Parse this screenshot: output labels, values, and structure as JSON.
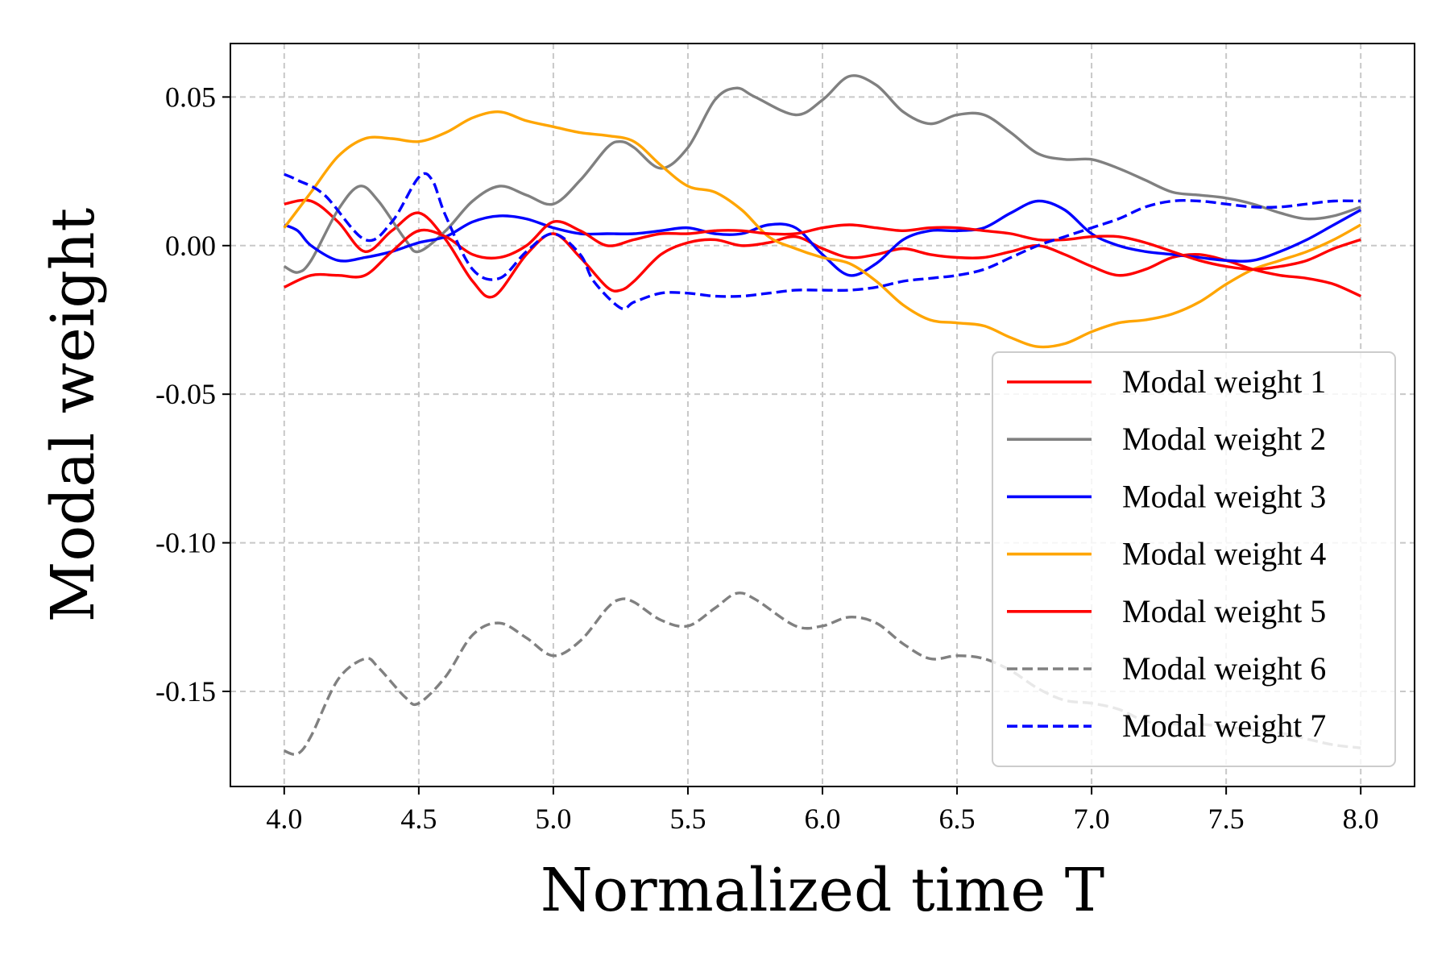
{
  "chart_data": {
    "type": "line",
    "title": "",
    "xlabel": "Normalized time T",
    "ylabel": "Modal weight",
    "xlim": [
      3.8,
      8.2
    ],
    "ylim": [
      -0.182,
      0.068
    ],
    "xticks": [
      4.0,
      4.5,
      5.0,
      5.5,
      6.0,
      6.5,
      7.0,
      7.5,
      8.0
    ],
    "xtick_labels": [
      "4.0",
      "4.5",
      "5.0",
      "5.5",
      "6.0",
      "6.5",
      "7.0",
      "7.5",
      "8.0"
    ],
    "yticks": [
      0.05,
      0.0,
      -0.05,
      -0.1,
      -0.15
    ],
    "ytick_labels": [
      "0.05",
      "0.00",
      "-0.05",
      "-0.10",
      "-0.15"
    ],
    "grid": true,
    "legend_position": "bottom-right",
    "series": [
      {
        "name": "Modal weight 1",
        "color": "#ff0000",
        "dash": "solid",
        "x": [
          4.0,
          4.1,
          4.2,
          4.3,
          4.4,
          4.5,
          4.6,
          4.7,
          4.78,
          4.9,
          5.0,
          5.1,
          5.2,
          5.25,
          5.3,
          5.4,
          5.5,
          5.6,
          5.7,
          5.8,
          5.9,
          6.0,
          6.1,
          6.2,
          6.3,
          6.4,
          6.5,
          6.6,
          6.7,
          6.8,
          6.9,
          7.0,
          7.1,
          7.2,
          7.3,
          7.4,
          7.5,
          7.6,
          7.7,
          7.8,
          7.9,
          8.0
        ],
        "y": [
          0.014,
          0.015,
          0.008,
          -0.002,
          0.005,
          0.011,
          0.002,
          -0.012,
          -0.017,
          -0.003,
          0.004,
          -0.004,
          -0.014,
          -0.015,
          -0.012,
          -0.003,
          0.001,
          0.002,
          0.0,
          0.001,
          0.003,
          -0.001,
          -0.004,
          -0.003,
          -0.001,
          -0.003,
          -0.004,
          -0.004,
          -0.002,
          0.0,
          -0.003,
          -0.007,
          -0.01,
          -0.008,
          -0.004,
          -0.003,
          -0.005,
          -0.008,
          -0.01,
          -0.011,
          -0.013,
          -0.017
        ]
      },
      {
        "name": "Modal weight 2",
        "color": "#808080",
        "dash": "solid",
        "x": [
          4.0,
          4.05,
          4.1,
          4.2,
          4.28,
          4.35,
          4.45,
          4.5,
          4.6,
          4.7,
          4.8,
          4.9,
          5.0,
          5.1,
          5.2,
          5.25,
          5.3,
          5.4,
          5.5,
          5.6,
          5.68,
          5.75,
          5.9,
          6.0,
          6.1,
          6.2,
          6.3,
          6.4,
          6.5,
          6.6,
          6.7,
          6.8,
          6.9,
          7.0,
          7.1,
          7.2,
          7.3,
          7.4,
          7.5,
          7.6,
          7.7,
          7.8,
          7.9,
          8.0
        ],
        "y": [
          -0.007,
          -0.009,
          -0.005,
          0.012,
          0.02,
          0.015,
          0.002,
          -0.002,
          0.005,
          0.015,
          0.02,
          0.017,
          0.014,
          0.022,
          0.033,
          0.035,
          0.033,
          0.026,
          0.033,
          0.049,
          0.053,
          0.05,
          0.044,
          0.049,
          0.057,
          0.054,
          0.045,
          0.041,
          0.044,
          0.044,
          0.038,
          0.031,
          0.029,
          0.029,
          0.026,
          0.022,
          0.018,
          0.017,
          0.016,
          0.014,
          0.011,
          0.009,
          0.01,
          0.013
        ]
      },
      {
        "name": "Modal weight 3",
        "color": "#0000ff",
        "dash": "solid",
        "x": [
          4.0,
          4.05,
          4.1,
          4.2,
          4.3,
          4.4,
          4.5,
          4.6,
          4.7,
          4.8,
          4.9,
          5.0,
          5.1,
          5.2,
          5.3,
          5.4,
          5.5,
          5.6,
          5.7,
          5.8,
          5.9,
          6.0,
          6.1,
          6.2,
          6.3,
          6.4,
          6.5,
          6.6,
          6.7,
          6.8,
          6.9,
          7.0,
          7.1,
          7.2,
          7.3,
          7.4,
          7.5,
          7.6,
          7.7,
          7.8,
          7.9,
          8.0
        ],
        "y": [
          0.007,
          0.005,
          0.0,
          -0.005,
          -0.004,
          -0.002,
          0.001,
          0.003,
          0.008,
          0.01,
          0.009,
          0.006,
          0.004,
          0.004,
          0.004,
          0.005,
          0.006,
          0.004,
          0.004,
          0.007,
          0.006,
          -0.003,
          -0.01,
          -0.006,
          0.002,
          0.005,
          0.005,
          0.006,
          0.011,
          0.015,
          0.012,
          0.004,
          0.0,
          -0.002,
          -0.003,
          -0.004,
          -0.005,
          -0.005,
          -0.002,
          0.002,
          0.007,
          0.012
        ]
      },
      {
        "name": "Modal weight 4",
        "color": "#ffa500",
        "dash": "solid",
        "x": [
          4.0,
          4.1,
          4.2,
          4.3,
          4.4,
          4.5,
          4.6,
          4.7,
          4.8,
          4.9,
          5.0,
          5.1,
          5.2,
          5.3,
          5.4,
          5.5,
          5.6,
          5.7,
          5.8,
          5.9,
          6.0,
          6.1,
          6.2,
          6.3,
          6.4,
          6.5,
          6.6,
          6.7,
          6.8,
          6.9,
          7.0,
          7.1,
          7.2,
          7.3,
          7.4,
          7.5,
          7.6,
          7.7,
          7.8,
          7.9,
          8.0
        ],
        "y": [
          0.006,
          0.018,
          0.03,
          0.036,
          0.036,
          0.035,
          0.038,
          0.043,
          0.045,
          0.042,
          0.04,
          0.038,
          0.037,
          0.035,
          0.027,
          0.02,
          0.018,
          0.012,
          0.003,
          -0.001,
          -0.004,
          -0.006,
          -0.012,
          -0.02,
          -0.025,
          -0.026,
          -0.027,
          -0.031,
          -0.034,
          -0.033,
          -0.029,
          -0.026,
          -0.025,
          -0.023,
          -0.019,
          -0.013,
          -0.008,
          -0.005,
          -0.002,
          0.002,
          0.007
        ]
      },
      {
        "name": "Modal weight 5",
        "color": "#ff0000",
        "dash": "solid",
        "x": [
          4.0,
          4.1,
          4.2,
          4.3,
          4.4,
          4.5,
          4.6,
          4.7,
          4.8,
          4.9,
          5.0,
          5.1,
          5.2,
          5.3,
          5.4,
          5.5,
          5.6,
          5.7,
          5.8,
          5.9,
          6.0,
          6.1,
          6.2,
          6.3,
          6.4,
          6.5,
          6.6,
          6.7,
          6.8,
          6.9,
          7.0,
          7.1,
          7.2,
          7.3,
          7.4,
          7.5,
          7.6,
          7.7,
          7.8,
          7.9,
          8.0
        ],
        "y": [
          -0.014,
          -0.01,
          -0.01,
          -0.01,
          -0.002,
          0.005,
          0.003,
          -0.003,
          -0.004,
          0.0,
          0.008,
          0.005,
          0.0,
          0.002,
          0.004,
          0.004,
          0.005,
          0.005,
          0.004,
          0.004,
          0.006,
          0.007,
          0.006,
          0.005,
          0.006,
          0.006,
          0.005,
          0.004,
          0.002,
          0.002,
          0.003,
          0.003,
          0.001,
          -0.002,
          -0.005,
          -0.007,
          -0.008,
          -0.007,
          -0.005,
          -0.001,
          0.002
        ]
      },
      {
        "name": "Modal weight 6",
        "color": "#808080",
        "dash": "dashed",
        "x": [
          4.0,
          4.05,
          4.1,
          4.2,
          4.3,
          4.35,
          4.45,
          4.5,
          4.6,
          4.7,
          4.8,
          4.9,
          5.0,
          5.1,
          5.2,
          5.25,
          5.3,
          5.4,
          5.5,
          5.6,
          5.68,
          5.75,
          5.9,
          6.0,
          6.1,
          6.2,
          6.3,
          6.4,
          6.5,
          6.6,
          6.7,
          6.8,
          6.9,
          7.0,
          7.1,
          7.2,
          7.3,
          7.4,
          7.5,
          7.6,
          7.7,
          7.8,
          7.9,
          8.0
        ],
        "y": [
          -0.17,
          -0.171,
          -0.165,
          -0.146,
          -0.139,
          -0.142,
          -0.152,
          -0.154,
          -0.145,
          -0.131,
          -0.127,
          -0.132,
          -0.138,
          -0.133,
          -0.122,
          -0.119,
          -0.12,
          -0.126,
          -0.128,
          -0.122,
          -0.117,
          -0.119,
          -0.128,
          -0.128,
          -0.125,
          -0.127,
          -0.134,
          -0.139,
          -0.138,
          -0.139,
          -0.143,
          -0.149,
          -0.153,
          -0.154,
          -0.156,
          -0.16,
          -0.161,
          -0.161,
          -0.162,
          -0.163,
          -0.164,
          -0.166,
          -0.168,
          -0.169
        ]
      },
      {
        "name": "Modal weight 7",
        "color": "#0000ff",
        "dash": "dashed",
        "x": [
          4.0,
          4.05,
          4.15,
          4.3,
          4.4,
          4.5,
          4.55,
          4.6,
          4.7,
          4.8,
          4.9,
          5.0,
          5.1,
          5.15,
          5.25,
          5.3,
          5.4,
          5.5,
          5.6,
          5.7,
          5.8,
          5.9,
          6.0,
          6.1,
          6.2,
          6.3,
          6.4,
          6.5,
          6.6,
          6.7,
          6.8,
          6.9,
          7.0,
          7.1,
          7.2,
          7.3,
          7.4,
          7.5,
          7.6,
          7.7,
          7.8,
          7.9,
          8.0
        ],
        "y": [
          0.024,
          0.022,
          0.017,
          0.002,
          0.008,
          0.023,
          0.022,
          0.01,
          -0.008,
          -0.011,
          -0.002,
          0.004,
          -0.003,
          -0.012,
          -0.021,
          -0.019,
          -0.016,
          -0.016,
          -0.017,
          -0.017,
          -0.016,
          -0.015,
          -0.015,
          -0.015,
          -0.014,
          -0.012,
          -0.011,
          -0.01,
          -0.008,
          -0.004,
          0.0,
          0.003,
          0.006,
          0.009,
          0.013,
          0.015,
          0.015,
          0.014,
          0.013,
          0.013,
          0.014,
          0.015,
          0.015
        ]
      }
    ]
  }
}
